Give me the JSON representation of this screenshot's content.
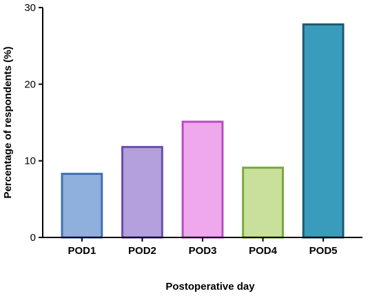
{
  "chart_data": {
    "type": "bar",
    "title": "",
    "xlabel": "Postoperative day",
    "ylabel": "Percentage of respondents (%)",
    "categories": [
      "POD1",
      "POD2",
      "POD3",
      "POD4",
      "POD5"
    ],
    "values": [
      8.3,
      11.8,
      15.1,
      9.1,
      27.8
    ],
    "ylim": [
      0,
      30
    ],
    "yticks": [
      "0",
      "10",
      "20",
      "30"
    ],
    "grid": false,
    "legend": "none",
    "colors": {
      "fills": [
        "#8fb0dc",
        "#b3a0dc",
        "#f0a8ec",
        "#c8e09c",
        "#3a9cbc"
      ],
      "strokes": [
        "#3f6fb0",
        "#6a4cb0",
        "#b64cc0",
        "#78a83c",
        "#1f5a70"
      ]
    }
  }
}
